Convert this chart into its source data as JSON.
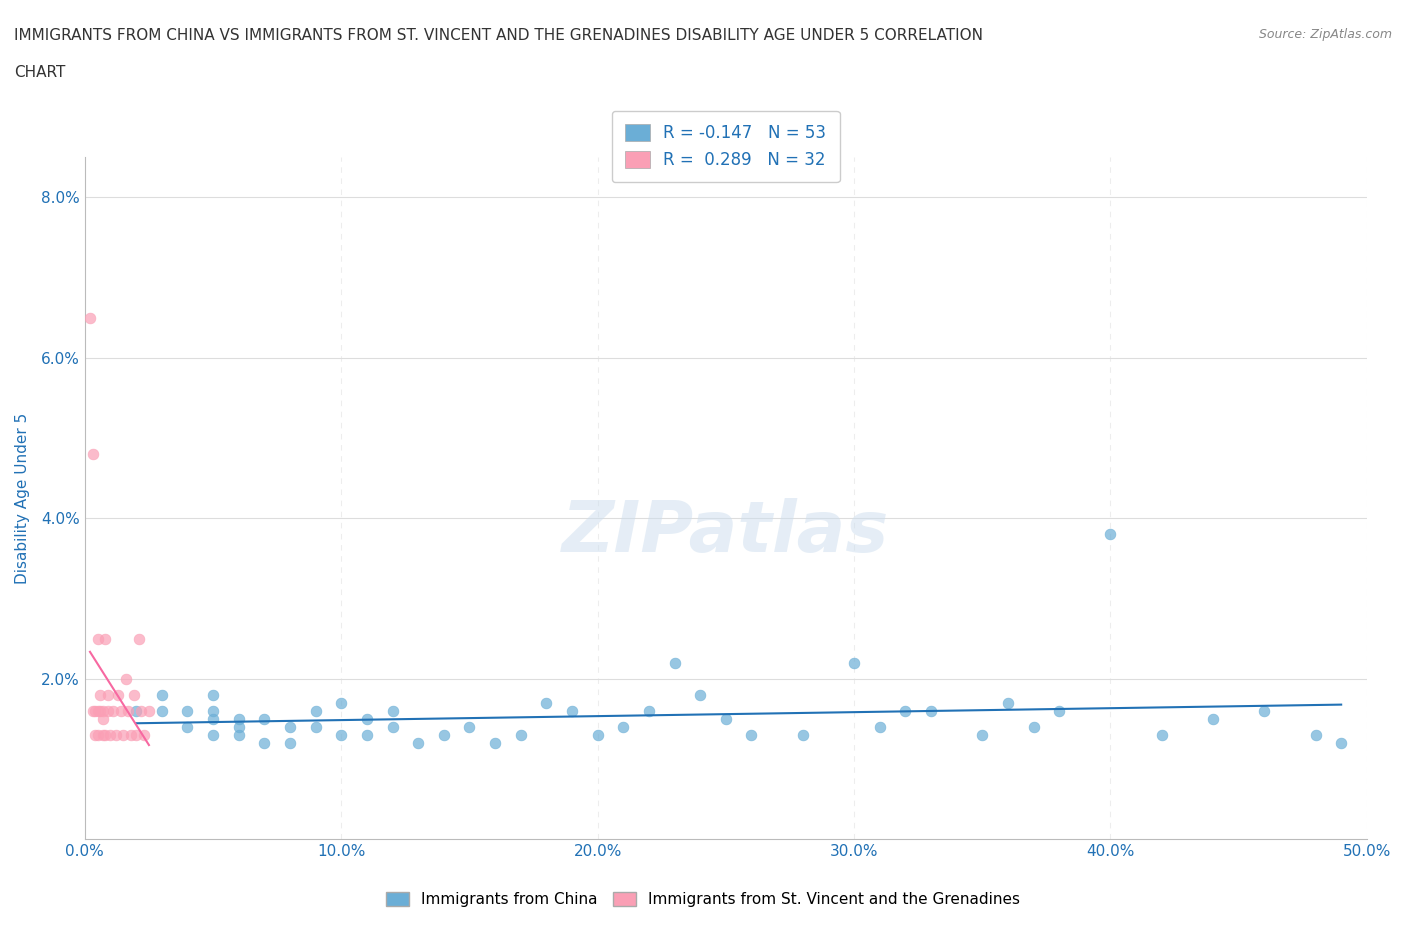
{
  "title_line1": "IMMIGRANTS FROM CHINA VS IMMIGRANTS FROM ST. VINCENT AND THE GRENADINES DISABILITY AGE UNDER 5 CORRELATION",
  "title_line2": "CHART",
  "source_text": "Source: ZipAtlas.com",
  "xlabel": "",
  "ylabel": "Disability Age Under 5",
  "xlim": [
    0.0,
    0.5
  ],
  "ylim": [
    0.0,
    0.085
  ],
  "xtick_labels": [
    "0.0%",
    "10.0%",
    "20.0%",
    "30.0%",
    "40.0%",
    "50.0%"
  ],
  "xtick_vals": [
    0.0,
    0.1,
    0.2,
    0.3,
    0.4,
    0.5
  ],
  "ytick_labels": [
    "",
    "2.0%",
    "4.0%",
    "6.0%",
    "8.0%"
  ],
  "ytick_vals": [
    0.0,
    0.02,
    0.04,
    0.06,
    0.08
  ],
  "china_color": "#6baed6",
  "china_edge_color": "#6baed6",
  "svg_color": "#fa9fb5",
  "svg_edge_color": "#fa9fb5",
  "trend_china_color": "#2171b5",
  "trend_svg_color": "#f768a1",
  "watermark": "ZIPatlas",
  "legend_r_china": "R = -0.147",
  "legend_n_china": "N = 53",
  "legend_r_svg": "R =  0.289",
  "legend_n_svg": "N = 32",
  "china_x": [
    0.02,
    0.03,
    0.03,
    0.04,
    0.04,
    0.05,
    0.05,
    0.05,
    0.05,
    0.06,
    0.06,
    0.06,
    0.07,
    0.07,
    0.08,
    0.08,
    0.09,
    0.09,
    0.1,
    0.1,
    0.11,
    0.11,
    0.12,
    0.12,
    0.13,
    0.14,
    0.15,
    0.16,
    0.17,
    0.18,
    0.19,
    0.2,
    0.21,
    0.22,
    0.23,
    0.24,
    0.25,
    0.26,
    0.28,
    0.3,
    0.31,
    0.32,
    0.33,
    0.35,
    0.36,
    0.37,
    0.38,
    0.4,
    0.42,
    0.44,
    0.46,
    0.48,
    0.49
  ],
  "china_y": [
    0.016,
    0.018,
    0.016,
    0.016,
    0.014,
    0.013,
    0.016,
    0.018,
    0.015,
    0.015,
    0.014,
    0.013,
    0.015,
    0.012,
    0.014,
    0.012,
    0.014,
    0.016,
    0.013,
    0.017,
    0.013,
    0.015,
    0.014,
    0.016,
    0.012,
    0.013,
    0.014,
    0.012,
    0.013,
    0.017,
    0.016,
    0.013,
    0.014,
    0.016,
    0.022,
    0.018,
    0.015,
    0.013,
    0.013,
    0.022,
    0.014,
    0.016,
    0.016,
    0.013,
    0.017,
    0.014,
    0.016,
    0.038,
    0.013,
    0.015,
    0.016,
    0.013,
    0.012
  ],
  "svg_x": [
    0.002,
    0.003,
    0.003,
    0.004,
    0.004,
    0.005,
    0.005,
    0.005,
    0.006,
    0.006,
    0.007,
    0.007,
    0.007,
    0.008,
    0.008,
    0.009,
    0.009,
    0.01,
    0.011,
    0.012,
    0.013,
    0.014,
    0.015,
    0.016,
    0.017,
    0.018,
    0.019,
    0.02,
    0.021,
    0.022,
    0.023,
    0.025
  ],
  "svg_y": [
    0.065,
    0.048,
    0.016,
    0.013,
    0.016,
    0.016,
    0.013,
    0.025,
    0.016,
    0.018,
    0.015,
    0.013,
    0.016,
    0.025,
    0.013,
    0.016,
    0.018,
    0.013,
    0.016,
    0.013,
    0.018,
    0.016,
    0.013,
    0.02,
    0.016,
    0.013,
    0.018,
    0.013,
    0.025,
    0.016,
    0.013,
    0.016
  ],
  "background_color": "#ffffff",
  "grid_color": "#dddddd",
  "title_color": "#333333",
  "axis_label_color": "#2171b5",
  "tick_label_color": "#2171b5"
}
